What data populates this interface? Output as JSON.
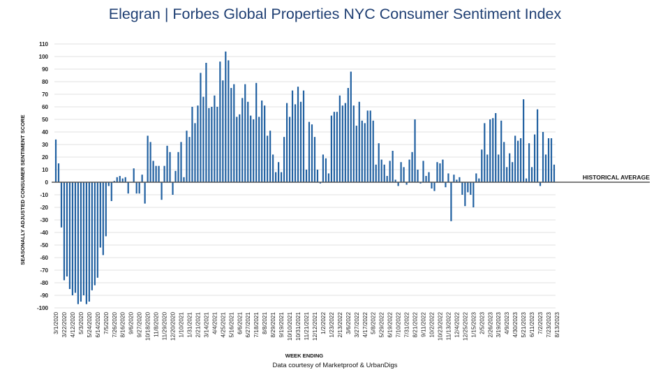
{
  "title": {
    "brand": "Elegran | Forbes Global Properties",
    "rest": " NYC Consumer Sentiment Index"
  },
  "credit": "Data courtesy of Marketproof & UrbanDigs",
  "colors": {
    "bar": "#1f5fa0",
    "grid": "#d9d9d9",
    "title": "#1f3f73",
    "baseline": "#555555"
  },
  "chart_data": {
    "type": "bar",
    "ylabel": "SEASONALLY ADJUSTED CONSUMER SENTIMENT SCORE",
    "xlabel": "WEEK ENDING",
    "ylim": [
      -100,
      110
    ],
    "yticks": [
      110,
      100,
      90,
      80,
      70,
      60,
      50,
      40,
      30,
      20,
      10,
      0,
      -10,
      -20,
      -30,
      -40,
      -50,
      -60,
      -70,
      -80,
      -90,
      -100
    ],
    "grid": true,
    "baseline_label": "HISTORICAL AVERAGE",
    "tick_labels": [
      "3/1/2020",
      "3/22/2020",
      "4/12/2020",
      "5/3/2020",
      "5/24/2020",
      "6/14/2020",
      "7/5/2020",
      "7/26/2020",
      "8/16/2020",
      "9/6/2020",
      "9/27/2020",
      "10/18/2020",
      "11/8/2020",
      "11/29/2020",
      "12/20/2020",
      "1/10/2021",
      "1/31/2021",
      "2/21/2021",
      "3/14/2021",
      "4/4/2021",
      "4/25/2021",
      "5/16/2021",
      "6/6/2021",
      "6/27/2021",
      "7/18/2021",
      "8/8/2021",
      "8/29/2021",
      "9/19/2021",
      "10/10/2021",
      "10/31/2021",
      "11/21/2021",
      "12/12/2021",
      "1/2/2022",
      "1/23/2022",
      "2/13/2022",
      "3/6/2022",
      "3/27/2022",
      "4/17/2022",
      "5/8/2022",
      "5/29/2022",
      "6/19/2022",
      "7/10/2022",
      "7/31/2022",
      "8/21/2022",
      "9/11/2022",
      "10/2/2022",
      "10/23/2022",
      "11/13/2022",
      "12/4/2022",
      "12/25/2022",
      "1/15/2023",
      "2/5/2023",
      "2/26/2023",
      "3/19/2023",
      "4/9/2023",
      "4/30/2023",
      "5/21/2023",
      "6/11/2023",
      "7/2/2023",
      "7/23/2023",
      "8/13/2023"
    ],
    "weeks_per_tick": 3,
    "values": [
      34,
      15,
      -36,
      -78,
      -75,
      -85,
      -90,
      -88,
      -97,
      -95,
      -90,
      -97,
      -95,
      -86,
      -82,
      -76,
      -52,
      -58,
      -43,
      -3,
      -15,
      1,
      4,
      5,
      3,
      4,
      -9,
      0,
      11,
      -9,
      -9,
      6,
      -17,
      37,
      32,
      17,
      13,
      13,
      -14,
      13,
      29,
      24,
      -10,
      9,
      24,
      32,
      4,
      41,
      36,
      60,
      47,
      61,
      87,
      68,
      95,
      59,
      60,
      69,
      60,
      96,
      81,
      104,
      97,
      75,
      78,
      52,
      54,
      67,
      78,
      64,
      53,
      50,
      79,
      52,
      65,
      61,
      37,
      41,
      22,
      8,
      16,
      8,
      36,
      63,
      52,
      73,
      62,
      76,
      64,
      73,
      10,
      48,
      46,
      36,
      10,
      -1,
      22,
      19,
      7,
      53,
      56,
      56,
      69,
      61,
      63,
      75,
      88,
      61,
      45,
      64,
      49,
      47,
      57,
      57,
      49,
      14,
      31,
      18,
      14,
      5,
      17,
      25,
      2,
      -3,
      16,
      12,
      -2,
      18,
      24,
      50,
      10,
      -1,
      17,
      5,
      8,
      -5,
      -7,
      16,
      15,
      18,
      -4,
      7,
      -31,
      6,
      2,
      4,
      -10,
      -19,
      -8,
      -10,
      -20,
      7,
      3,
      26,
      47,
      22,
      50,
      51,
      55,
      22,
      49,
      32,
      12,
      23,
      16,
      37,
      33,
      35,
      66,
      3,
      31,
      12,
      38,
      58,
      -3,
      40,
      22,
      35,
      35,
      14
    ]
  }
}
